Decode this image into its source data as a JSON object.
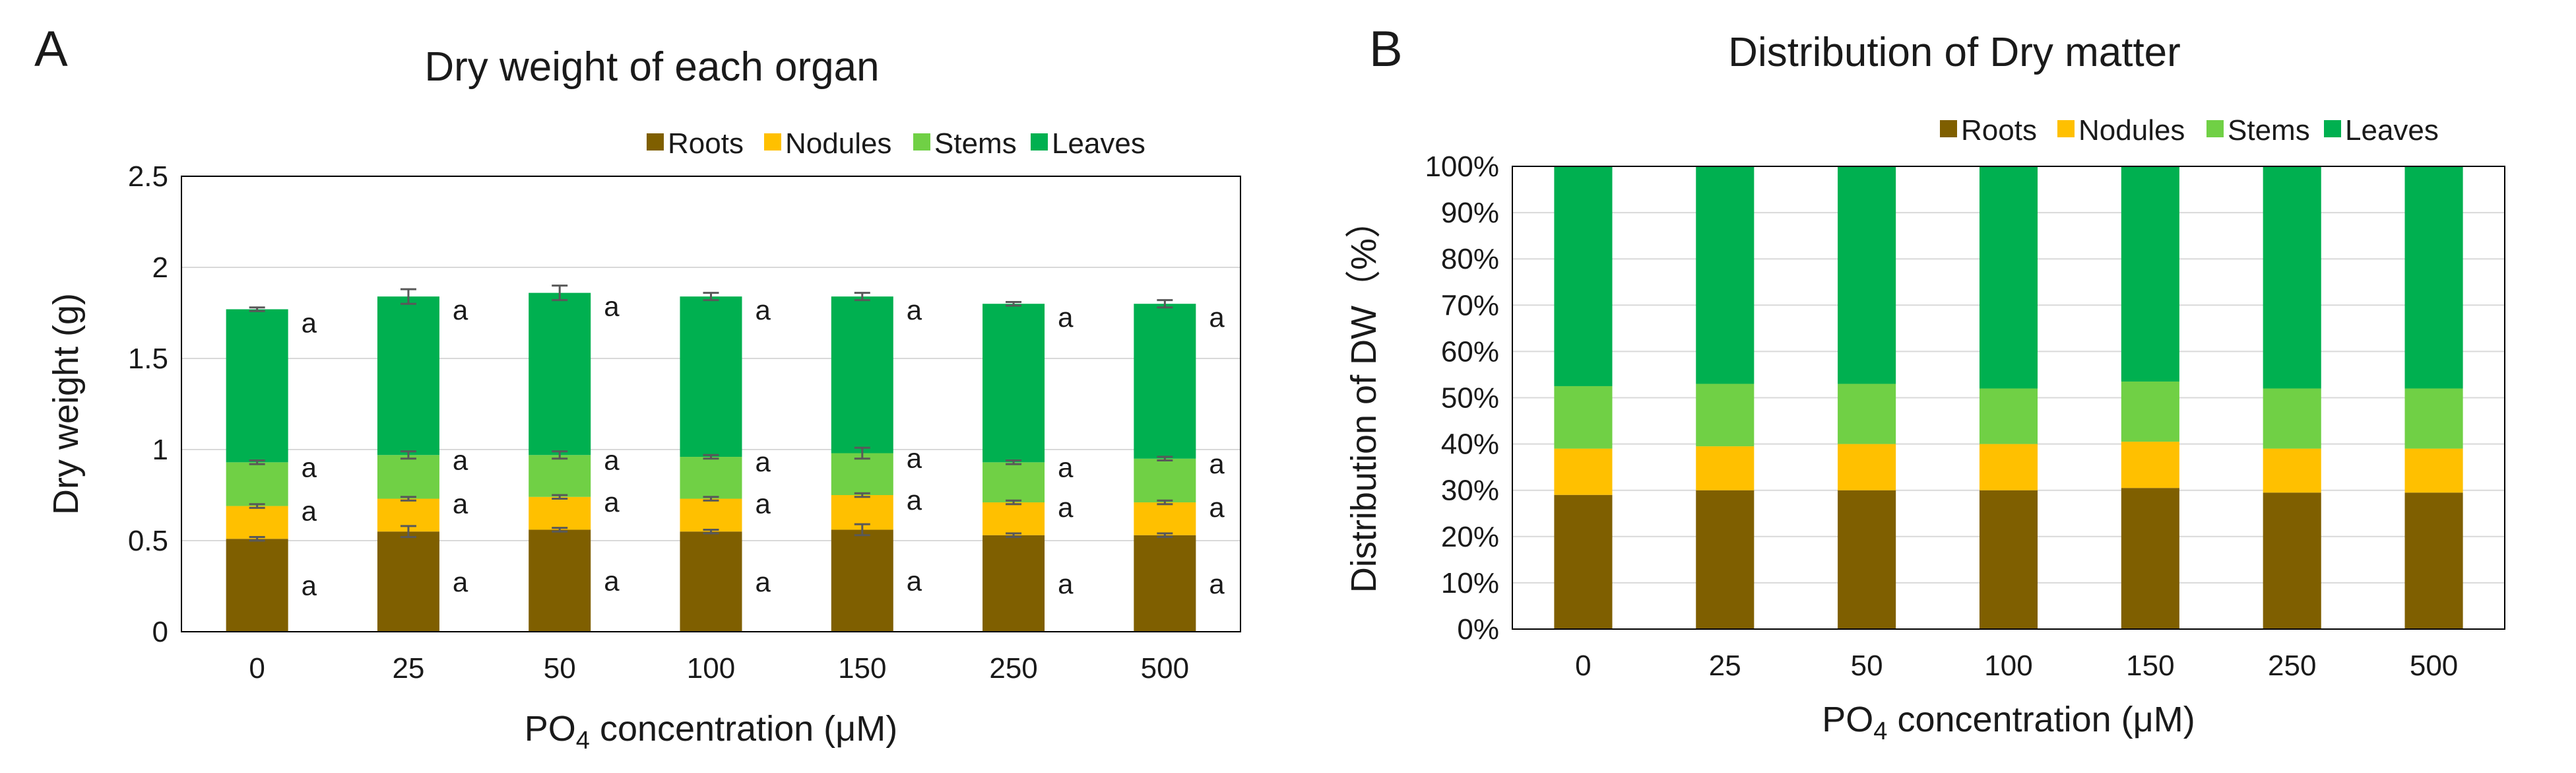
{
  "colors": {
    "Roots": "#7f5f00",
    "Nodules": "#ffc000",
    "Stems": "#70d045",
    "Leaves": "#00b050",
    "grid": "#d9d9d9",
    "errorbar": "#595959"
  },
  "chart_data": [
    {
      "panel": "A",
      "type": "bar",
      "stacked": true,
      "title": "Dry weight of each organ",
      "xlabel": "PO4 concentration (μM)",
      "xlabel_parts": {
        "prefix": "PO",
        "sub": "4",
        "suffix": " concentration (μM)"
      },
      "ylabel": "Dry weight (g)",
      "ylim": [
        0,
        2.5
      ],
      "yticks": [
        "0",
        "0.5",
        "1",
        "1.5",
        "2",
        "2.5"
      ],
      "grid": true,
      "legend": [
        "Roots",
        "Nodules",
        "Stems",
        "Leaves"
      ],
      "legend_position": "top-right",
      "categories": [
        "0",
        "25",
        "50",
        "100",
        "150",
        "250",
        "500"
      ],
      "series": [
        {
          "name": "Roots",
          "values": [
            0.51,
            0.55,
            0.56,
            0.55,
            0.56,
            0.53,
            0.53
          ],
          "error": [
            0.01,
            0.03,
            0.01,
            0.01,
            0.03,
            0.01,
            0.01
          ]
        },
        {
          "name": "Nodules",
          "values": [
            0.18,
            0.18,
            0.18,
            0.18,
            0.19,
            0.18,
            0.18
          ],
          "error": [
            0.01,
            0.01,
            0.01,
            0.01,
            0.01,
            0.01,
            0.01
          ]
        },
        {
          "name": "Stems",
          "values": [
            0.24,
            0.24,
            0.23,
            0.23,
            0.23,
            0.22,
            0.24
          ],
          "error": [
            0.01,
            0.02,
            0.02,
            0.01,
            0.03,
            0.01,
            0.01
          ]
        },
        {
          "name": "Leaves",
          "values": [
            0.84,
            0.87,
            0.89,
            0.88,
            0.86,
            0.87,
            0.85
          ],
          "error": [
            0.01,
            0.04,
            0.04,
            0.02,
            0.02,
            0.01,
            0.02
          ]
        }
      ],
      "significance_letters": [
        [
          "a",
          "a",
          "a",
          "a",
          "a",
          "a",
          "a"
        ],
        [
          "a",
          "a",
          "a",
          "a",
          "a",
          "a",
          "a"
        ],
        [
          "a",
          "a",
          "a",
          "a",
          "a",
          "a",
          "a"
        ],
        [
          "a",
          "a",
          "a",
          "a",
          "a",
          "a",
          "a"
        ]
      ]
    },
    {
      "panel": "B",
      "type": "bar",
      "stacked": true,
      "percent": true,
      "title": "Distribution of Dry matter",
      "xlabel": "PO4 concentration (μM)",
      "xlabel_parts": {
        "prefix": "PO",
        "sub": "4",
        "suffix": " concentration (μM)"
      },
      "ylabel": "Distribution of DW（%）",
      "ylim": [
        0,
        100
      ],
      "yticks": [
        "0%",
        "10%",
        "20%",
        "30%",
        "40%",
        "50%",
        "60%",
        "70%",
        "80%",
        "90%",
        "100%"
      ],
      "grid": true,
      "legend": [
        "Roots",
        "Nodules",
        "Stems",
        "Leaves"
      ],
      "legend_position": "top-right",
      "categories": [
        "0",
        "25",
        "50",
        "100",
        "150",
        "250",
        "500"
      ],
      "series": [
        {
          "name": "Roots",
          "values": [
            29,
            30,
            30,
            30,
            30.5,
            29.5,
            29.5
          ]
        },
        {
          "name": "Nodules",
          "values": [
            10,
            9.5,
            10,
            10,
            10,
            9.5,
            9.5
          ]
        },
        {
          "name": "Stems",
          "values": [
            13.5,
            13.5,
            13,
            12,
            13,
            13,
            13
          ]
        },
        {
          "name": "Leaves",
          "values": [
            47.5,
            47,
            47,
            48,
            46.5,
            48,
            48
          ]
        }
      ]
    }
  ]
}
